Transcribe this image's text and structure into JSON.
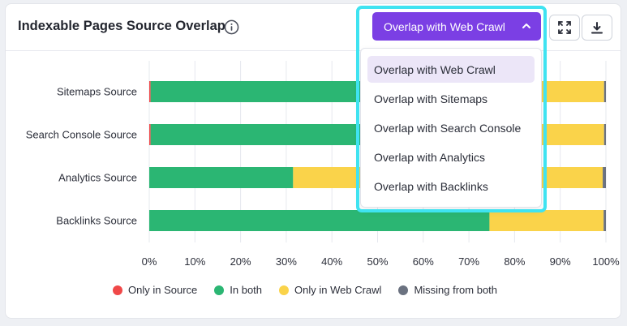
{
  "card": {
    "title": "Indexable Pages Source Overlap"
  },
  "dropdown": {
    "selected": "Overlap with Web Crawl",
    "options": [
      "Overlap with Web Crawl",
      "Overlap with Sitemaps",
      "Overlap with Search Console",
      "Overlap with Analytics",
      "Overlap with Backlinks"
    ]
  },
  "icons": {
    "info": "info-icon",
    "chevron": "chevron-up-icon",
    "expand": "expand-icon",
    "download": "download-icon"
  },
  "legend": [
    {
      "label": "Only in Source",
      "color": "#f04848"
    },
    {
      "label": "In both",
      "color": "#2bb673"
    },
    {
      "label": "Only in Web Crawl",
      "color": "#fad34a"
    },
    {
      "label": "Missing from both",
      "color": "#6b7280"
    }
  ],
  "chart_data": {
    "type": "bar",
    "orientation": "horizontal",
    "stacked": true,
    "categories": [
      "Sitemaps Source",
      "Search Console Source",
      "Analytics Source",
      "Backlinks Source"
    ],
    "series": [
      {
        "name": "Only in Source",
        "color": "#f04848",
        "values": [
          0.3,
          0.3,
          0,
          0
        ]
      },
      {
        "name": "In both",
        "color": "#2bb673",
        "values": [
          72.0,
          72.0,
          31.5,
          74.5
        ]
      },
      {
        "name": "Only in Web Crawl",
        "color": "#fad34a",
        "values": [
          27.3,
          27.3,
          67.8,
          25.0
        ]
      },
      {
        "name": "Missing from both",
        "color": "#6b7280",
        "values": [
          0.4,
          0.4,
          0.7,
          0.5
        ]
      }
    ],
    "x_ticks": [
      "0%",
      "10%",
      "20%",
      "30%",
      "40%",
      "50%",
      "60%",
      "70%",
      "80%",
      "90%",
      "100%"
    ],
    "xlim": [
      0,
      100
    ],
    "grid": "vertical",
    "legend_position": "bottom"
  }
}
